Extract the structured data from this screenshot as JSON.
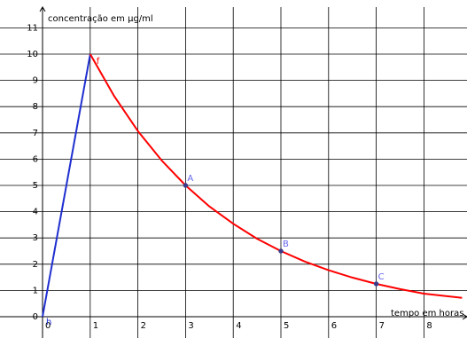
{
  "chart_data": {
    "type": "line",
    "title": "",
    "xlabel": "tempo em horas",
    "ylabel": "concentração em µg/ml",
    "xlim": [
      -0.8,
      8.8
    ],
    "ylim": [
      -0.3,
      11.5
    ],
    "grid": true,
    "x_ticks": [
      "0",
      "1",
      "2",
      "3",
      "4",
      "5",
      "6",
      "7",
      "8"
    ],
    "y_ticks": [
      "0",
      "1",
      "2",
      "3",
      "4",
      "5",
      "6",
      "7",
      "8",
      "9",
      "10",
      "11"
    ],
    "series": [
      {
        "name": "h",
        "color": "#1f2fd0",
        "x": [
          0,
          1
        ],
        "y": [
          0,
          10
        ]
      },
      {
        "name": "f",
        "color": "#ff0000",
        "x": [
          1,
          1.5,
          2,
          2.5,
          3,
          3.5,
          4,
          4.5,
          5,
          5.5,
          6,
          6.5,
          7,
          7.5,
          8,
          8.8
        ],
        "y": [
          10,
          8.41,
          7.07,
          5.95,
          5.0,
          4.2,
          3.54,
          2.97,
          2.5,
          2.1,
          1.77,
          1.49,
          1.25,
          1.05,
          0.88,
          0.72
        ]
      }
    ],
    "points": [
      {
        "label": "A",
        "x": 3,
        "y": 5.0,
        "color": "#6666ee"
      },
      {
        "label": "B",
        "x": 5,
        "y": 2.5,
        "color": "#6666ee"
      },
      {
        "label": "C",
        "x": 7,
        "y": 1.25,
        "color": "#6666ee"
      }
    ]
  }
}
